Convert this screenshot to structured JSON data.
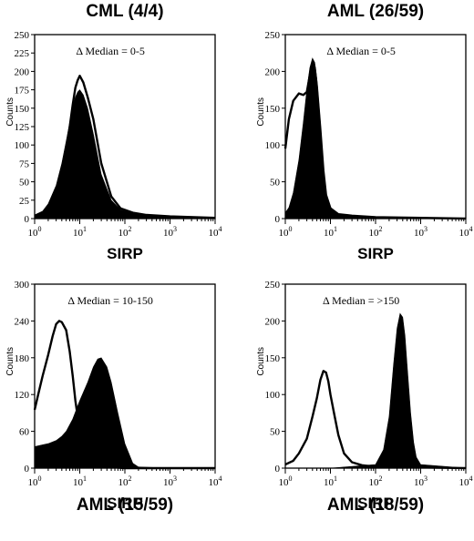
{
  "chart_data": [
    {
      "type": "area",
      "title": "CML  (4/4)",
      "xlabel": "SIRP",
      "ylabel": "Counts",
      "annotation": "Δ Median = 0-5",
      "xscale": "log",
      "xlim": [
        1,
        10000
      ],
      "ylim": [
        0,
        250
      ],
      "yticks": [
        0,
        25,
        50,
        75,
        100,
        125,
        150,
        175,
        200,
        225,
        250
      ],
      "xticks": [
        {
          "base": "10",
          "exp": "0"
        },
        {
          "base": "10",
          "exp": "1"
        },
        {
          "base": "10",
          "exp": "2"
        },
        {
          "base": "10",
          "exp": "3"
        },
        {
          "base": "10",
          "exp": "4"
        }
      ],
      "title_position": "top",
      "series": [
        {
          "style": "filled",
          "x": [
            1,
            1.5,
            2,
            3,
            4,
            5,
            6,
            7,
            8,
            9,
            10,
            12,
            15,
            20,
            30,
            50,
            80,
            150,
            300,
            1000,
            10000
          ],
          "y": [
            5,
            10,
            20,
            45,
            75,
            105,
            130,
            150,
            165,
            172,
            175,
            168,
            150,
            115,
            60,
            25,
            12,
            7,
            5,
            3,
            1
          ]
        },
        {
          "style": "outline",
          "x": [
            1,
            1.5,
            2,
            3,
            4,
            5,
            6,
            7,
            8,
            9,
            10,
            12,
            15,
            20,
            30,
            50,
            80,
            150,
            300,
            1000,
            10000
          ],
          "y": [
            3,
            8,
            15,
            35,
            60,
            95,
            125,
            155,
            178,
            188,
            194,
            185,
            165,
            135,
            75,
            30,
            14,
            8,
            5,
            3,
            1
          ]
        }
      ]
    },
    {
      "type": "area",
      "title": "AML  (26/59)",
      "xlabel": "SIRP",
      "ylabel": "Counts",
      "annotation": "Δ Median = 0-5",
      "xscale": "log",
      "xlim": [
        1,
        10000
      ],
      "ylim": [
        0,
        250
      ],
      "yticks": [
        0,
        50,
        100,
        150,
        200,
        250
      ],
      "xticks": [
        {
          "base": "10",
          "exp": "0"
        },
        {
          "base": "10",
          "exp": "1"
        },
        {
          "base": "10",
          "exp": "2"
        },
        {
          "base": "10",
          "exp": "3"
        },
        {
          "base": "10",
          "exp": "4"
        }
      ],
      "title_position": "top",
      "series": [
        {
          "style": "filled",
          "x": [
            1,
            1.2,
            1.5,
            2,
            2.5,
            3,
            3.5,
            4,
            4.5,
            5,
            6,
            7,
            8,
            10,
            15,
            30,
            100,
            1000,
            10000
          ],
          "y": [
            8,
            15,
            35,
            80,
            130,
            175,
            205,
            218,
            212,
            190,
            130,
            70,
            35,
            15,
            6,
            4,
            2,
            1,
            0
          ]
        },
        {
          "style": "outline",
          "x": [
            1,
            1.2,
            1.5,
            2,
            2.5,
            3,
            3.5,
            4,
            4.5,
            5,
            6,
            7,
            8,
            10,
            15,
            30,
            100,
            1000,
            10000
          ],
          "y": [
            95,
            135,
            160,
            170,
            168,
            172,
            195,
            212,
            205,
            180,
            120,
            65,
            32,
            14,
            6,
            4,
            2,
            1,
            0
          ]
        }
      ]
    },
    {
      "type": "area",
      "title": "AML  (15/59)",
      "xlabel": "SIRP",
      "ylabel": "Counts",
      "annotation": "Δ Median = 10-150",
      "xscale": "log",
      "xlim": [
        1,
        10000
      ],
      "ylim": [
        0,
        300
      ],
      "yticks": [
        0,
        60,
        120,
        180,
        240,
        300
      ],
      "xticks": [
        {
          "base": "10",
          "exp": "0"
        },
        {
          "base": "10",
          "exp": "1"
        },
        {
          "base": "10",
          "exp": "2"
        },
        {
          "base": "10",
          "exp": "3"
        },
        {
          "base": "10",
          "exp": "4"
        }
      ],
      "title_position": "bottom",
      "series": [
        {
          "style": "filled",
          "x": [
            1,
            1.5,
            2,
            3,
            4,
            5,
            7,
            10,
            15,
            20,
            25,
            30,
            40,
            50,
            70,
            100,
            150,
            200,
            1000,
            10000
          ],
          "y": [
            35,
            38,
            40,
            45,
            52,
            60,
            80,
            110,
            140,
            165,
            178,
            180,
            165,
            140,
            90,
            40,
            8,
            2,
            0,
            0
          ]
        },
        {
          "style": "outline",
          "x": [
            1,
            1.2,
            1.5,
            2,
            2.5,
            3,
            3.5,
            4,
            5,
            6,
            7,
            8,
            10,
            15,
            20,
            30,
            100,
            1000,
            10000
          ],
          "y": [
            95,
            120,
            150,
            185,
            215,
            235,
            240,
            238,
            225,
            190,
            150,
            110,
            60,
            20,
            8,
            3,
            0,
            0,
            0
          ]
        }
      ]
    },
    {
      "type": "area",
      "title": "AML  (18/59)",
      "xlabel": "SIRP",
      "ylabel": "Counts",
      "annotation": "Δ Median = >150",
      "xscale": "log",
      "xlim": [
        1,
        10000
      ],
      "ylim": [
        0,
        250
      ],
      "yticks": [
        0,
        50,
        100,
        150,
        200,
        250
      ],
      "xticks": [
        {
          "base": "10",
          "exp": "0"
        },
        {
          "base": "10",
          "exp": "1"
        },
        {
          "base": "10",
          "exp": "2"
        },
        {
          "base": "10",
          "exp": "3"
        },
        {
          "base": "10",
          "exp": "4"
        }
      ],
      "title_position": "bottom",
      "series": [
        {
          "style": "filled",
          "x": [
            1,
            10,
            100,
            150,
            200,
            250,
            300,
            350,
            400,
            450,
            500,
            600,
            700,
            800,
            1000,
            10000
          ],
          "y": [
            0,
            0,
            5,
            25,
            70,
            140,
            190,
            210,
            205,
            180,
            140,
            75,
            35,
            15,
            5,
            0
          ]
        },
        {
          "style": "outline",
          "x": [
            1,
            1.5,
            2,
            3,
            4,
            5,
            6,
            7,
            8,
            9,
            10,
            12,
            15,
            20,
            30,
            50,
            100,
            10000
          ],
          "y": [
            5,
            10,
            20,
            40,
            70,
            95,
            120,
            132,
            130,
            118,
            100,
            75,
            45,
            20,
            8,
            4,
            2,
            0
          ]
        }
      ]
    }
  ]
}
